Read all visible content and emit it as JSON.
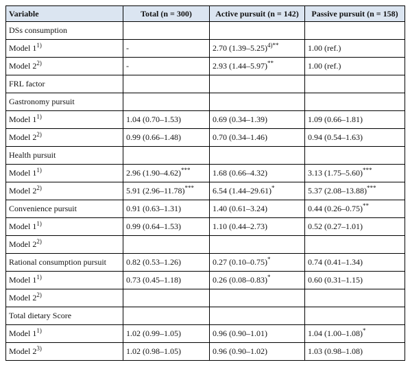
{
  "table": {
    "header": [
      "Variable",
      "Total (n = 300)",
      "Active pursuit (n = 142)",
      "Passive pursuit (n = 158)"
    ],
    "rows": [
      [
        "DSs consumption",
        null,
        null,
        null
      ],
      [
        {
          "text": "Model 1",
          "sup": "1)"
        },
        "-",
        {
          "text": "2.70 (1.39–5.25)",
          "sup": "4)**"
        },
        "1.00 (ref.)"
      ],
      [
        {
          "text": "Model 2",
          "sup": "2)"
        },
        "-",
        {
          "text": "2.93 (1.44–5.97)",
          "sup": "**"
        },
        "1.00 (ref.)"
      ],
      [
        "FRL factor",
        null,
        null,
        null
      ],
      [
        "Gastronomy pursuit",
        null,
        null,
        null
      ],
      [
        {
          "text": "Model 1",
          "sup": "1)"
        },
        "1.04 (0.70–1.53)",
        "0.69 (0.34–1.39)",
        "1.09 (0.66–1.81)"
      ],
      [
        {
          "text": "Model 2",
          "sup": "2)"
        },
        "0.99 (0.66–1.48)",
        "0.70 (0.34–1.46)",
        "0.94 (0.54–1.63)"
      ],
      [
        "Health pursuit",
        null,
        null,
        null
      ],
      [
        {
          "text": "Model 1",
          "sup": "1)"
        },
        {
          "text": "2.96 (1.90–4.62)",
          "sup": "***"
        },
        "1.68 (0.66–4.32)",
        {
          "text": "3.13 (1.75–5.60)",
          "sup": "***"
        }
      ],
      [
        {
          "text": "Model 2",
          "sup": "2)"
        },
        {
          "text": "5.91 (2.96–11.78)",
          "sup": "***"
        },
        {
          "text": "6.54 (1.44–29.61)",
          "sup": "*"
        },
        {
          "text": "5.37 (2.08–13.88)",
          "sup": "***"
        }
      ],
      [
        "Convenience pursuit",
        "0.91 (0.63–1.31)",
        "1.40 (0.61–3.24)",
        {
          "text": "0.44 (0.26–0.75)",
          "sup": "**"
        }
      ],
      [
        {
          "text": "Model 1",
          "sup": "1)"
        },
        "0.99 (0.64–1.53)",
        "1.10 (0.44–2.73)",
        "0.52 (0.27–1.01)"
      ],
      [
        {
          "text": "Model 2",
          "sup": "2)"
        },
        null,
        null,
        null
      ],
      [
        "Rational consumption pursuit",
        "0.82 (0.53–1.26)",
        {
          "text": "0.27 (0.10–0.75)",
          "sup": "*"
        },
        "0.74 (0.41–1.34)"
      ],
      [
        {
          "text": "Model 1",
          "sup": "1)"
        },
        "0.73 (0.45–1.18)",
        {
          "text": "0.26 (0.08–0.83)",
          "sup": "*"
        },
        "0.60 (0.31–1.15)"
      ],
      [
        {
          "text": "Model 2",
          "sup": "2)"
        },
        null,
        null,
        null
      ],
      [
        "Total dietary Score",
        null,
        null,
        null
      ],
      [
        {
          "text": "Model 1",
          "sup": "1)"
        },
        "1.02 (0.99–1.05)",
        "0.96 (0.90–1.01)",
        {
          "text": "1.04 (1.00–1.08)",
          "sup": "*"
        }
      ],
      [
        {
          "text": "Model 2",
          "sup": "3)"
        },
        "1.02 (0.98–1.05)",
        "0.96 (0.90–1.02)",
        "1.03 (0.98–1.08)"
      ]
    ]
  }
}
